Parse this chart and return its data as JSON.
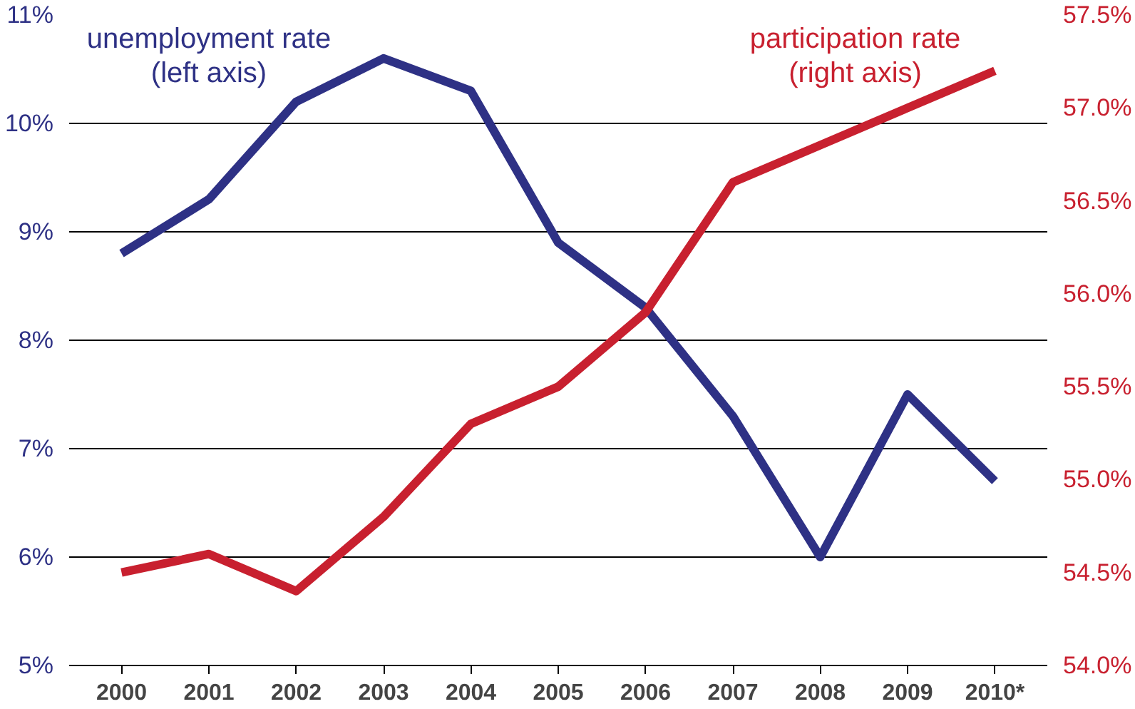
{
  "chart_data": {
    "type": "line",
    "categories": [
      "2000",
      "2001",
      "2002",
      "2003",
      "2004",
      "2005",
      "2006",
      "2007",
      "2008",
      "2009",
      "2010*"
    ],
    "series": [
      {
        "name": "unemployment rate\n(left axis)",
        "color": "#2e3185",
        "values": [
          8.8,
          9.3,
          10.2,
          10.6,
          10.3,
          8.9,
          8.3,
          7.3,
          6.0,
          7.5,
          6.7
        ]
      },
      {
        "name": "participation rate\n(right axis)",
        "color": "#c8202f",
        "axis": "y2",
        "values": [
          54.5,
          54.6,
          54.4,
          54.8,
          55.3,
          55.5,
          55.9,
          56.6,
          56.8,
          57.0,
          57.2
        ]
      }
    ],
    "ylim": [
      5,
      11
    ],
    "yticks": [
      {
        "value": 5,
        "label": "5%"
      },
      {
        "value": 6,
        "label": "6%"
      },
      {
        "value": 7,
        "label": "7%"
      },
      {
        "value": 8,
        "label": "8%"
      },
      {
        "value": 9,
        "label": "9%"
      },
      {
        "value": 10,
        "label": "10%"
      },
      {
        "value": 11,
        "label": "11%"
      }
    ],
    "y2lim": [
      54.0,
      57.5
    ],
    "y2ticks": [
      {
        "value": 54.0,
        "label": "54.0%"
      },
      {
        "value": 54.5,
        "label": "54.5%"
      },
      {
        "value": 55.0,
        "label": "55.0%"
      },
      {
        "value": 55.5,
        "label": "55.5%"
      },
      {
        "value": 56.0,
        "label": "56.0%"
      },
      {
        "value": 56.5,
        "label": "56.5%"
      },
      {
        "value": 57.0,
        "label": "57.0%"
      },
      {
        "value": 57.5,
        "label": "57.5%"
      }
    ],
    "grid": "y",
    "marker": "none",
    "line_style": "solid"
  }
}
